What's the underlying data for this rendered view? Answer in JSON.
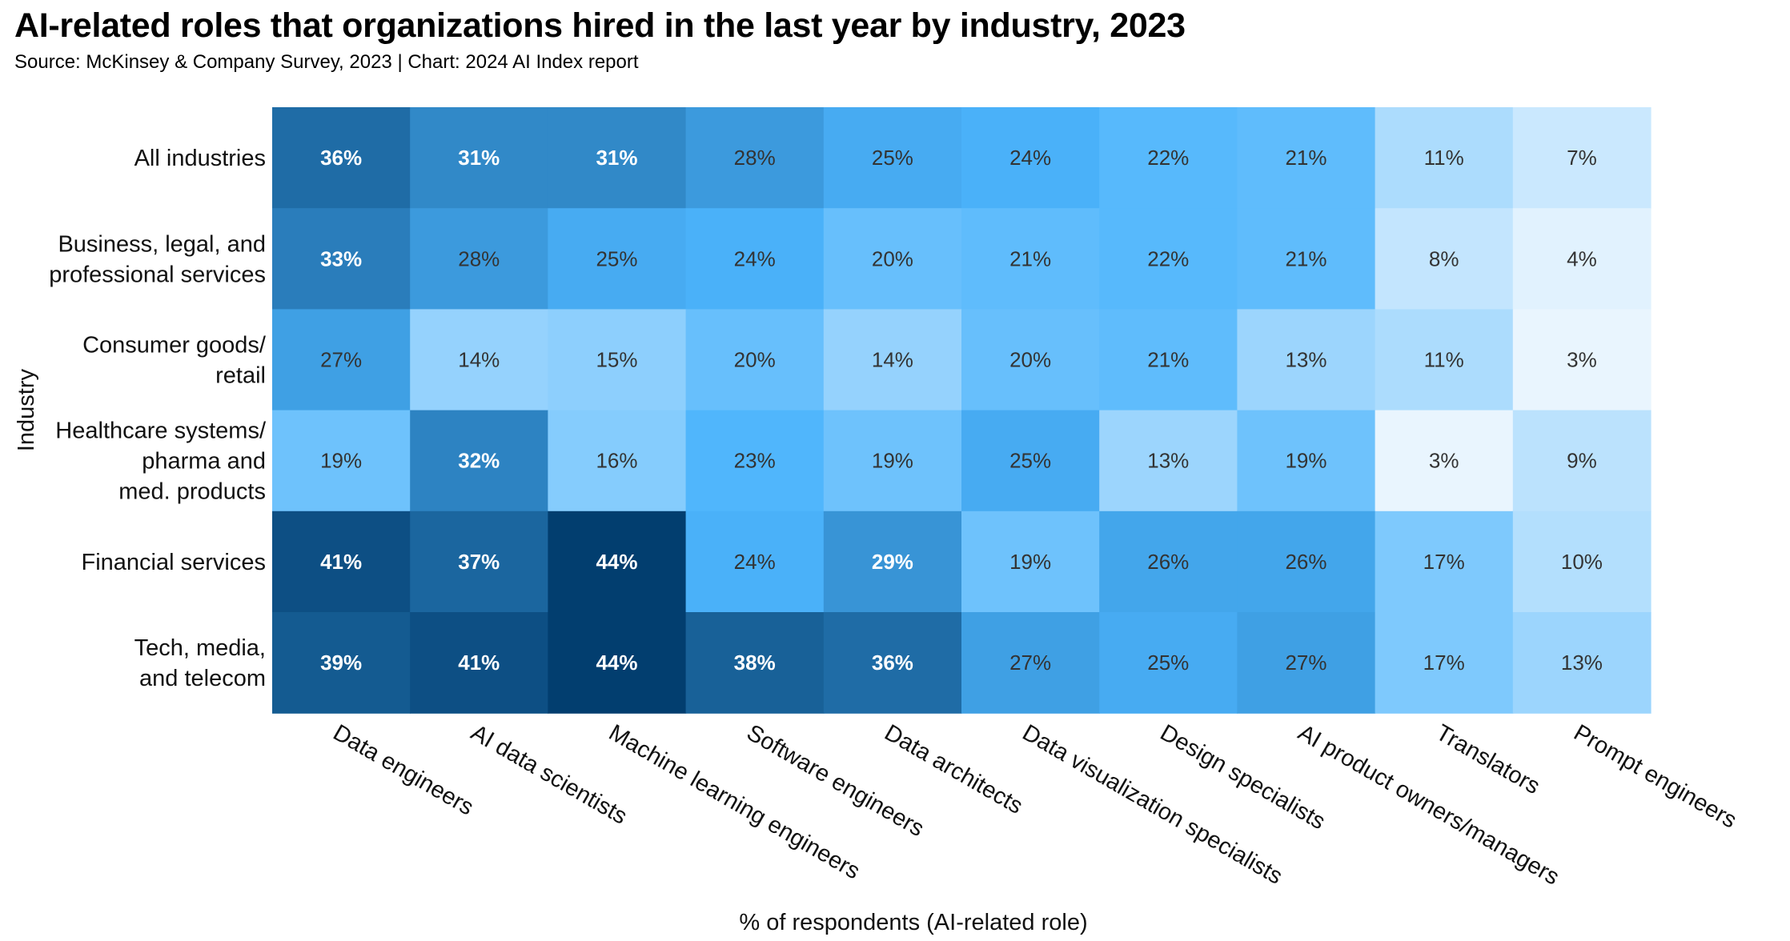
{
  "title": "AI-related roles that organizations hired in the last year by industry, 2023",
  "subtitle": "Source: McKinsey & Company Survey, 2023 | Chart: 2024 AI Index report",
  "chart_data": {
    "type": "heatmap",
    "xlabel": "% of respondents (AI-related role)",
    "ylabel": "Industry",
    "columns": [
      "Data engineers",
      "AI data scientists",
      "Machine learning engineers",
      "Software engineers",
      "Data architects",
      "Data visualization specialists",
      "Design specialists",
      "AI product owners/managers",
      "Translators",
      "Prompt engineers"
    ],
    "rows": [
      {
        "label": [
          "All industries"
        ],
        "values": [
          36,
          31,
          31,
          28,
          25,
          24,
          22,
          21,
          11,
          7
        ]
      },
      {
        "label": [
          "Business, legal, and",
          "professional services"
        ],
        "values": [
          33,
          28,
          25,
          24,
          20,
          21,
          22,
          21,
          8,
          4
        ]
      },
      {
        "label": [
          "Consumer goods/",
          "retail"
        ],
        "values": [
          27,
          14,
          15,
          20,
          14,
          20,
          21,
          13,
          11,
          3
        ]
      },
      {
        "label": [
          "Healthcare systems/",
          "pharma and",
          "med. products"
        ],
        "values": [
          19,
          32,
          16,
          23,
          19,
          25,
          13,
          19,
          3,
          9
        ]
      },
      {
        "label": [
          "Financial services"
        ],
        "values": [
          41,
          37,
          44,
          24,
          29,
          19,
          26,
          26,
          17,
          10
        ]
      },
      {
        "label": [
          "Tech, media,",
          "and telecom"
        ],
        "values": [
          39,
          41,
          44,
          38,
          36,
          27,
          25,
          27,
          17,
          13
        ]
      }
    ],
    "value_suffix": "%",
    "value_range": [
      3,
      44
    ],
    "colors": {
      "low": "#e9f5fe",
      "mid": "#4cb4fc",
      "high": "#023e6f",
      "text_dark": "#333333",
      "text_light": "#ffffff"
    }
  }
}
